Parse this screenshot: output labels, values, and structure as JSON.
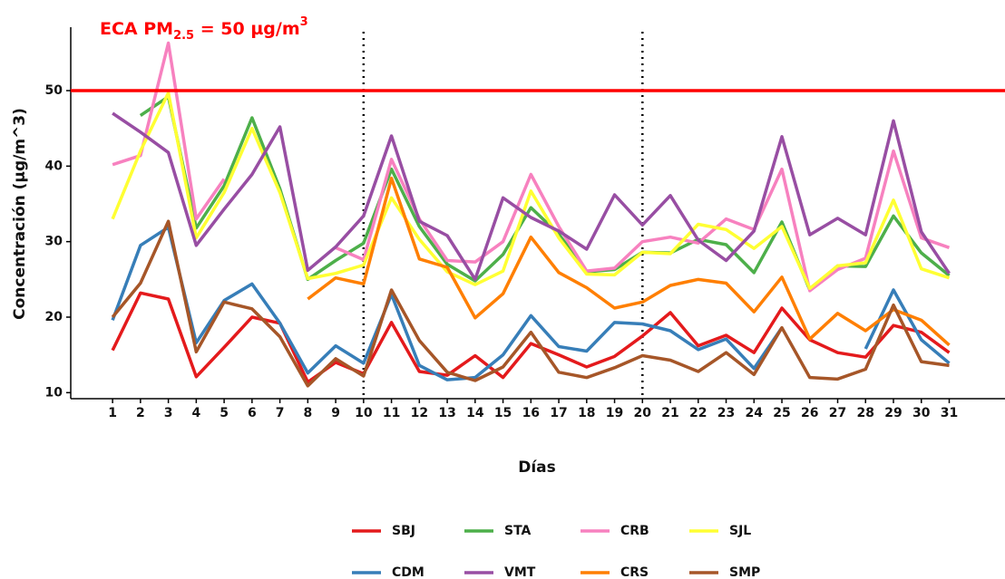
{
  "chart_data": {
    "type": "line",
    "annotation": [
      "ECA PM",
      "2.5",
      " = 50 µg/m",
      "3"
    ],
    "annotation_color": "#ff0000",
    "x_label": "Días",
    "y_label": "Concentración (µg/m^3)",
    "x": [
      1,
      2,
      3,
      4,
      5,
      6,
      7,
      8,
      9,
      10,
      11,
      12,
      13,
      14,
      15,
      16,
      17,
      18,
      19,
      20,
      21,
      22,
      23,
      24,
      25,
      26,
      27,
      28,
      29,
      30,
      31
    ],
    "xlim": [
      -0.5,
      33
    ],
    "xticks": [
      1,
      2,
      3,
      4,
      5,
      6,
      7,
      8,
      9,
      10,
      11,
      12,
      13,
      14,
      15,
      16,
      17,
      18,
      19,
      20,
      21,
      22,
      23,
      24,
      25,
      26,
      27,
      28,
      29,
      30,
      31
    ],
    "ylim": [
      9.2,
      58.4
    ],
    "yticks": [
      10,
      20,
      30,
      40,
      50
    ],
    "hline": 50,
    "hline_color": "#ff0000",
    "vlines": [
      10,
      20
    ],
    "legend": "bottom",
    "series": [
      {
        "name": "SBJ",
        "color": "#e41a1c",
        "values": [
          15.6,
          23.2,
          22.4,
          12.1,
          16,
          20,
          19.2,
          11.4,
          14,
          12.5,
          19.3,
          12.8,
          12.3,
          14.9,
          12,
          16.5,
          15,
          13.4,
          14.8,
          17.5,
          20.6,
          16.2,
          17.6,
          15.3,
          21.2,
          17,
          15.3,
          14.7,
          18.9,
          18,
          15.3
        ]
      },
      {
        "name": "STA",
        "color": "#4daf4a",
        "values": [
          null,
          46.7,
          49.2,
          31.8,
          37.4,
          46.4,
          37,
          25,
          27.5,
          29.8,
          39.6,
          32,
          27,
          24.8,
          28.3,
          34.5,
          31,
          26,
          26.3,
          28.6,
          28.5,
          30.3,
          29.6,
          25.9,
          32.6,
          23.6,
          26.8,
          26.7,
          33.4,
          28.5,
          25.5
        ]
      },
      {
        "name": "CRB",
        "color": "#f781bf",
        "values": [
          40.2,
          41.4,
          56.3,
          33,
          38.3,
          null,
          null,
          null,
          29.2,
          27.6,
          40.9,
          33,
          27.5,
          27.3,
          30,
          38.9,
          32,
          26.1,
          26.5,
          30,
          30.6,
          29.8,
          33,
          31.6,
          39.6,
          23.5,
          26.3,
          27.8,
          42,
          30.5,
          29.2
        ]
      },
      {
        "name": "SJL",
        "color": "#ffff33",
        "values": [
          33,
          42,
          49.7,
          30.5,
          36.5,
          45,
          36.5,
          25.1,
          25.8,
          26.9,
          35.8,
          30.3,
          26,
          24.3,
          26.1,
          36.7,
          30.5,
          25.7,
          25.6,
          28.6,
          28.4,
          32.3,
          31.6,
          29.1,
          32,
          23.8,
          26.8,
          27.2,
          35.5,
          26.4,
          25.2
        ]
      },
      {
        "name": "CDM",
        "color": "#377eb8",
        "values": [
          19.6,
          29.5,
          31.9,
          16.6,
          22.2,
          24.4,
          19.2,
          12.6,
          16.2,
          13.9,
          23,
          13.6,
          11.7,
          12,
          15,
          20.2,
          16.1,
          15.5,
          19.3,
          19.1,
          18.2,
          15.7,
          17.1,
          13.2,
          18.6,
          null,
          null,
          15.8,
          23.6,
          17,
          13.9
        ]
      },
      {
        "name": "VMT",
        "color": "#984ea3",
        "values": [
          47,
          44.5,
          41.8,
          29.5,
          34.3,
          38.9,
          45.2,
          26.2,
          29.3,
          33.4,
          44,
          32.7,
          30.8,
          25,
          35.8,
          33.2,
          31.4,
          29,
          36.2,
          32.2,
          36.1,
          30.2,
          27.5,
          31.4,
          43.9,
          30.9,
          33.1,
          30.9,
          46,
          31.3,
          25.8
        ]
      },
      {
        "name": "CRS",
        "color": "#ff7f00",
        "values": [
          null,
          null,
          null,
          null,
          null,
          null,
          null,
          22.4,
          25.2,
          24.4,
          38.4,
          27.7,
          26.6,
          19.9,
          23.1,
          30.6,
          25.9,
          23.9,
          21.2,
          22,
          24.2,
          25,
          24.5,
          20.7,
          25.3,
          17.1,
          20.5,
          18.2,
          21,
          19.6,
          16.3
        ]
      },
      {
        "name": "SMP",
        "color": "#a65628",
        "values": [
          20,
          24.5,
          32.7,
          15.4,
          22,
          21.1,
          17.4,
          10.9,
          14.5,
          12.2,
          23.6,
          16.9,
          12.7,
          11.6,
          13.4,
          18,
          12.7,
          12,
          13.3,
          14.9,
          14.3,
          12.8,
          15.3,
          12.4,
          18.6,
          12,
          11.8,
          13.1,
          21.6,
          14.1,
          13.6
        ]
      }
    ]
  }
}
